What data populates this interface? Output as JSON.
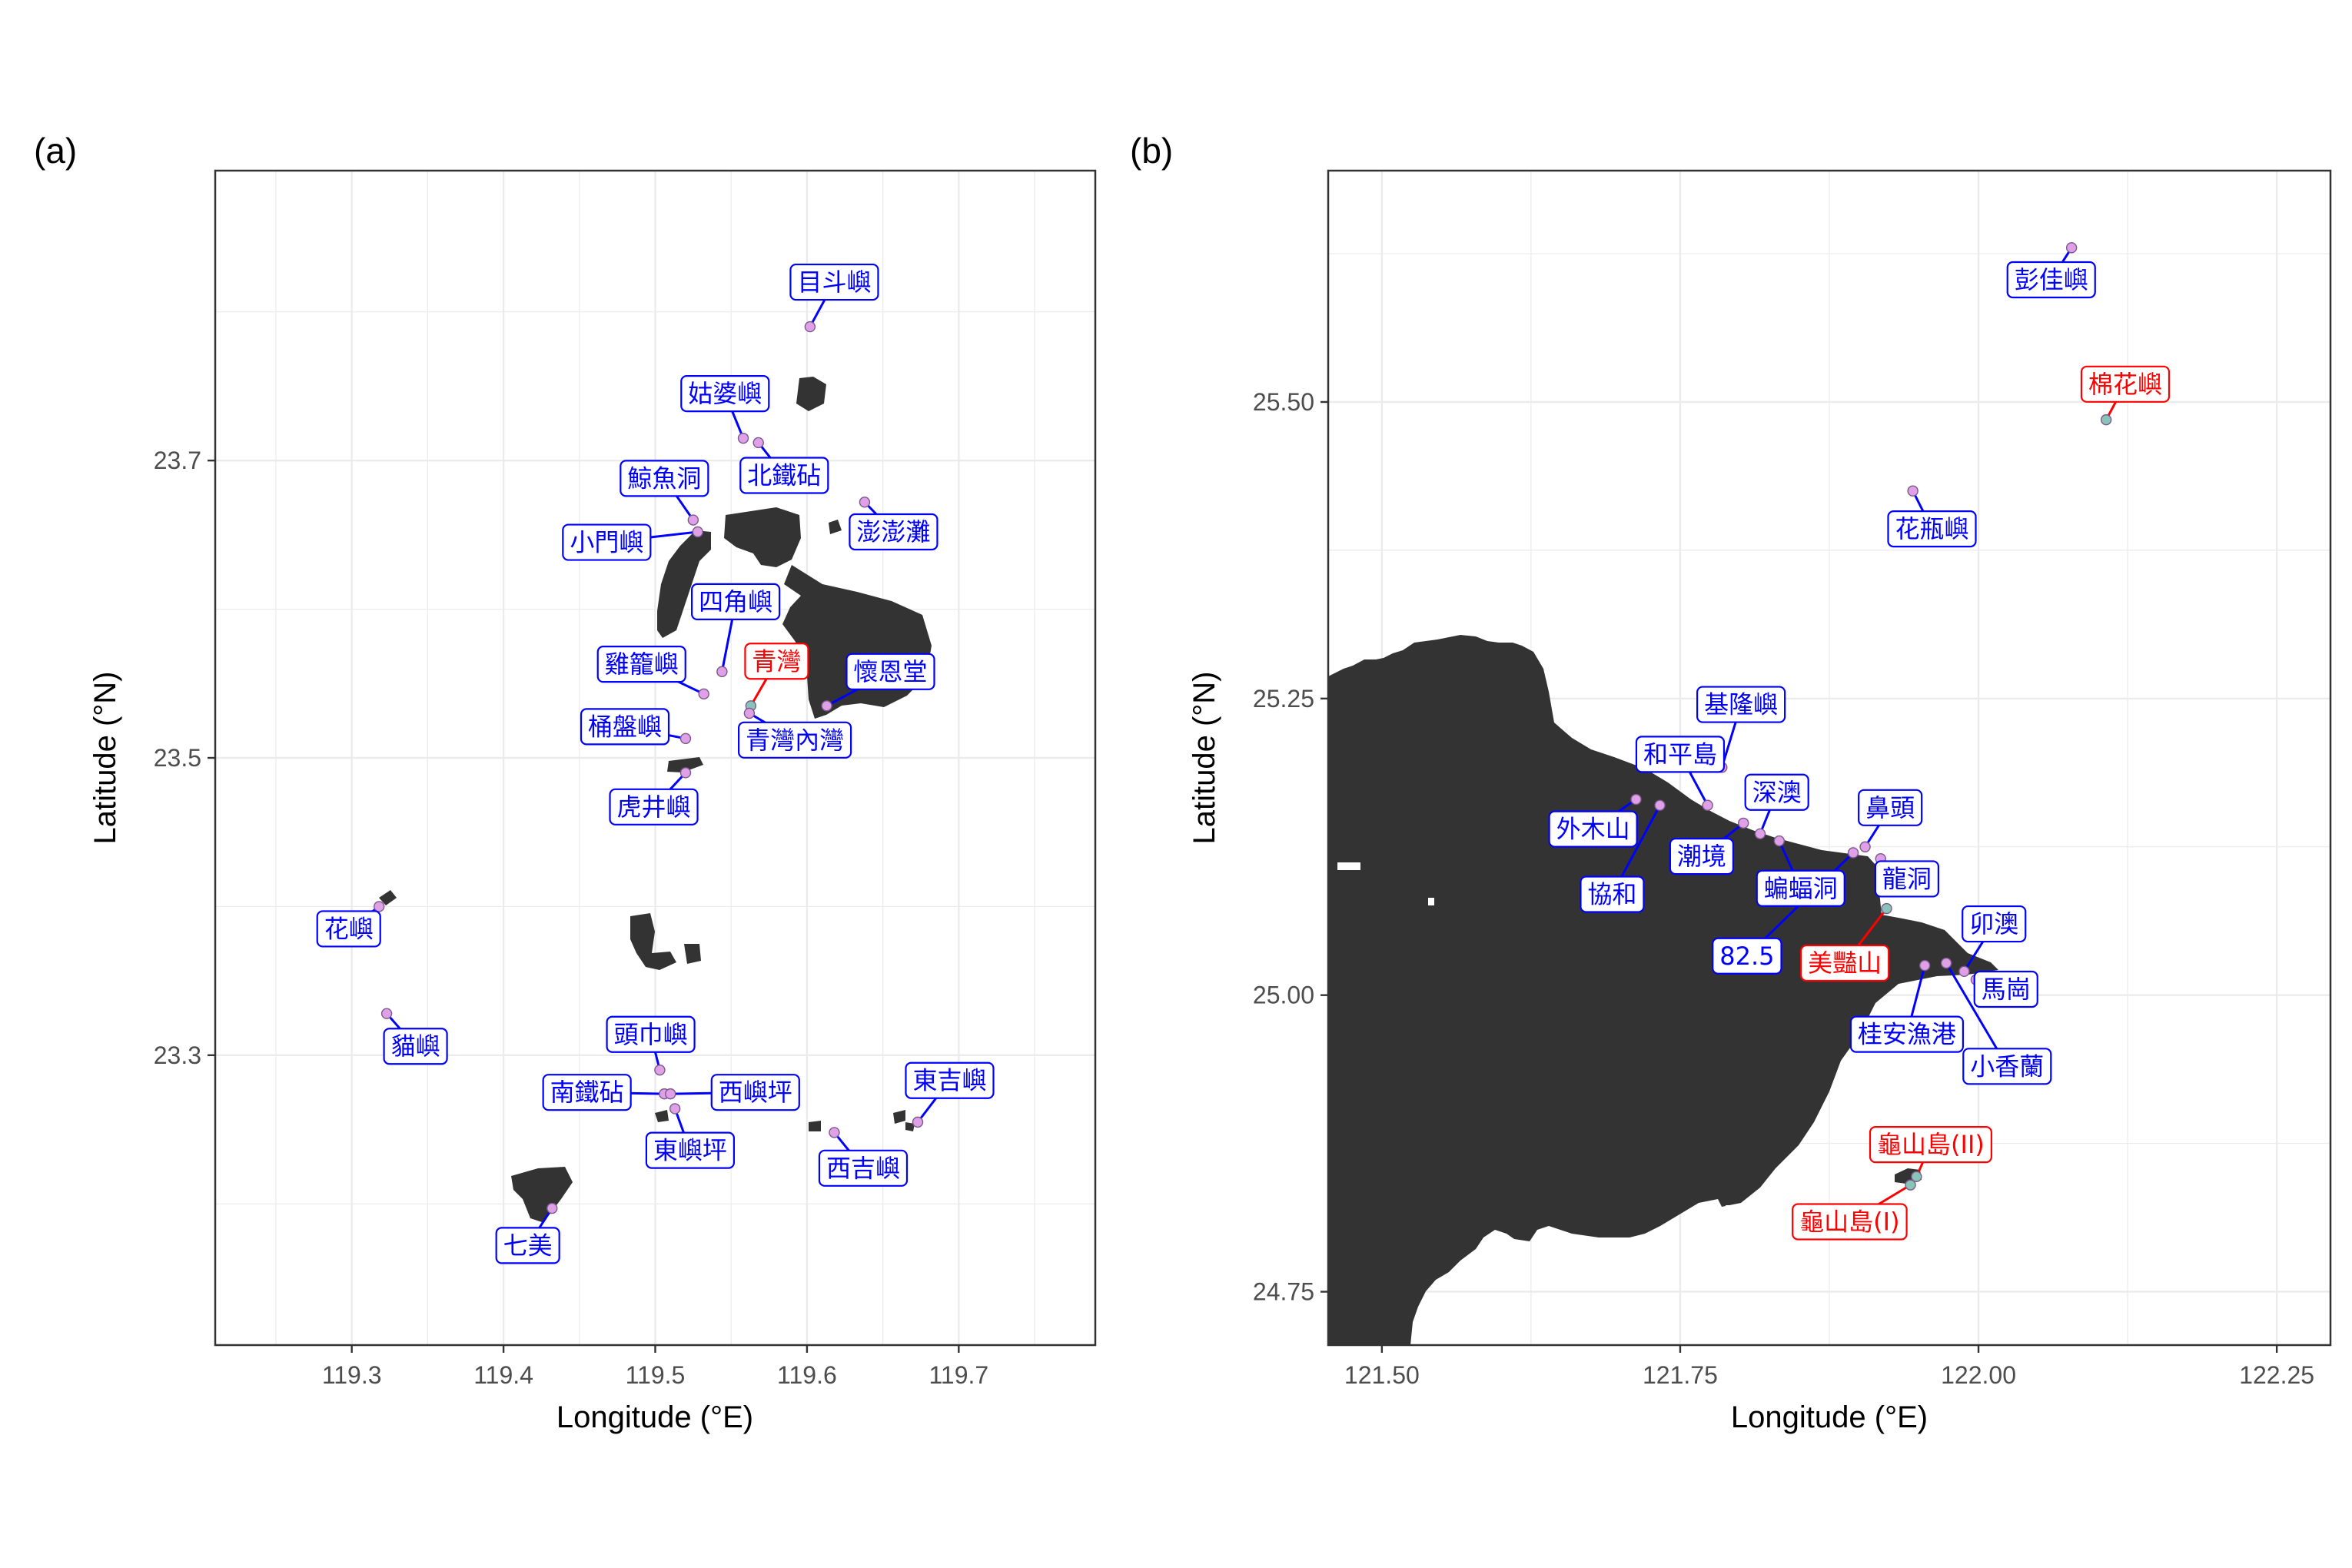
{
  "colors": {
    "land": "#333333",
    "grid": "#ebebeb",
    "frame": "#333333",
    "blue": "#0000ff",
    "red": "#ff0000",
    "point_blue_fill": "#e0a0e8",
    "point_red_fill": "#88c4b8"
  },
  "panels": [
    {
      "tag": "(a)",
      "xlabel": "Longitude (°E)",
      "ylabel": "Latitude (°N)",
      "xlim": [
        119.21,
        119.79
      ],
      "ylim": [
        23.105,
        23.895
      ],
      "xticks": [
        {
          "v": 119.3,
          "t": "119.3"
        },
        {
          "v": 119.4,
          "t": "119.4"
        },
        {
          "v": 119.5,
          "t": "119.5"
        },
        {
          "v": 119.6,
          "t": "119.6"
        },
        {
          "v": 119.7,
          "t": "119.7"
        }
      ],
      "yticks": [
        {
          "v": 23.3,
          "t": "23.3"
        },
        {
          "v": 23.5,
          "t": "23.5"
        },
        {
          "v": 23.7,
          "t": "23.7"
        }
      ],
      "sites": [
        {
          "name": "目斗嶼",
          "lon": 119.602,
          "lat": 23.79,
          "color": "blue",
          "lx": 119.618,
          "ly": 23.82
        },
        {
          "name": "姑婆嶼",
          "lon": 119.558,
          "lat": 23.715,
          "color": "blue",
          "lx": 119.546,
          "ly": 23.745
        },
        {
          "name": "北鐵砧",
          "lon": 119.568,
          "lat": 23.712,
          "color": "blue",
          "lx": 119.585,
          "ly": 23.69
        },
        {
          "name": "鯨魚洞",
          "lon": 119.525,
          "lat": 23.66,
          "color": "blue",
          "lx": 119.506,
          "ly": 23.688
        },
        {
          "name": "小門嶼",
          "lon": 119.528,
          "lat": 23.652,
          "color": "blue",
          "lx": 119.468,
          "ly": 23.645
        },
        {
          "name": "澎澎灘",
          "lon": 119.638,
          "lat": 23.672,
          "color": "blue",
          "lx": 119.657,
          "ly": 23.652
        },
        {
          "name": "四角嶼",
          "lon": 119.544,
          "lat": 23.558,
          "color": "blue",
          "lx": 119.553,
          "ly": 23.605
        },
        {
          "name": "雞籠嶼",
          "lon": 119.532,
          "lat": 23.543,
          "color": "blue",
          "lx": 119.491,
          "ly": 23.563
        },
        {
          "name": "青灣",
          "lon": 119.563,
          "lat": 23.535,
          "color": "red",
          "lx": 119.58,
          "ly": 23.565
        },
        {
          "name": "懷恩堂",
          "lon": 119.613,
          "lat": 23.535,
          "color": "blue",
          "lx": 119.655,
          "ly": 23.558
        },
        {
          "name": "青灣內灣",
          "lon": 119.562,
          "lat": 23.53,
          "color": "blue",
          "lx": 119.592,
          "ly": 23.512
        },
        {
          "name": "桶盤嶼",
          "lon": 119.52,
          "lat": 23.513,
          "color": "blue",
          "lx": 119.48,
          "ly": 23.521
        },
        {
          "name": "虎井嶼",
          "lon": 119.52,
          "lat": 23.49,
          "color": "blue",
          "lx": 119.499,
          "ly": 23.467
        },
        {
          "name": "花嶼",
          "lon": 119.318,
          "lat": 23.4,
          "color": "blue",
          "lx": 119.298,
          "ly": 23.385
        },
        {
          "name": "貓嶼",
          "lon": 119.323,
          "lat": 23.328,
          "color": "blue",
          "lx": 119.342,
          "ly": 23.306
        },
        {
          "name": "頭巾嶼",
          "lon": 119.503,
          "lat": 23.29,
          "color": "blue",
          "lx": 119.497,
          "ly": 23.314
        },
        {
          "name": "南鐵砧",
          "lon": 119.506,
          "lat": 23.274,
          "color": "blue",
          "lx": 119.455,
          "ly": 23.275
        },
        {
          "name": "西嶼坪",
          "lon": 119.51,
          "lat": 23.274,
          "color": "blue",
          "lx": 119.566,
          "ly": 23.275
        },
        {
          "name": "東嶼坪",
          "lon": 119.513,
          "lat": 23.264,
          "color": "blue",
          "lx": 119.523,
          "ly": 23.236
        },
        {
          "name": "東吉嶼",
          "lon": 119.673,
          "lat": 23.255,
          "color": "blue",
          "lx": 119.694,
          "ly": 23.283
        },
        {
          "name": "西吉嶼",
          "lon": 119.618,
          "lat": 23.248,
          "color": "blue",
          "lx": 119.637,
          "ly": 23.224
        },
        {
          "name": "七美",
          "lon": 119.432,
          "lat": 23.197,
          "color": "blue",
          "lx": 119.416,
          "ly": 23.172
        }
      ]
    },
    {
      "tag": "(b)",
      "xlabel": "Longitude (°E)",
      "ylabel": "Latitude (°N)",
      "xlim": [
        121.455,
        122.295
      ],
      "ylim": [
        24.705,
        25.695
      ],
      "xticks": [
        {
          "v": 121.5,
          "t": "121.50"
        },
        {
          "v": 121.75,
          "t": "121.75"
        },
        {
          "v": 122.0,
          "t": "122.00"
        },
        {
          "v": 122.25,
          "t": "122.25"
        }
      ],
      "yticks": [
        {
          "v": 24.75,
          "t": "24.75"
        },
        {
          "v": 25.0,
          "t": "25.00"
        },
        {
          "v": 25.25,
          "t": "25.25"
        },
        {
          "v": 25.5,
          "t": "25.50"
        }
      ],
      "sites": [
        {
          "name": "彭佳嶼",
          "lon": 122.078,
          "lat": 25.63,
          "color": "blue",
          "lx": 122.061,
          "ly": 25.603
        },
        {
          "name": "棉花嶼",
          "lon": 122.107,
          "lat": 25.485,
          "color": "red",
          "lx": 122.123,
          "ly": 25.515
        },
        {
          "name": "花瓶嶼",
          "lon": 121.945,
          "lat": 25.425,
          "color": "blue",
          "lx": 121.961,
          "ly": 25.393
        },
        {
          "name": "基隆嶼",
          "lon": 121.785,
          "lat": 25.192,
          "color": "blue",
          "lx": 121.801,
          "ly": 25.245
        },
        {
          "name": "和平島",
          "lon": 121.773,
          "lat": 25.16,
          "color": "blue",
          "lx": 121.75,
          "ly": 25.203
        },
        {
          "name": "外木山",
          "lon": 121.713,
          "lat": 25.165,
          "color": "blue",
          "lx": 121.677,
          "ly": 25.14
        },
        {
          "name": "協和",
          "lon": 121.733,
          "lat": 25.16,
          "color": "blue",
          "lx": 121.693,
          "ly": 25.085
        },
        {
          "name": "潮境",
          "lon": 121.803,
          "lat": 25.145,
          "color": "blue",
          "lx": 121.768,
          "ly": 25.117
        },
        {
          "name": "深澳",
          "lon": 121.817,
          "lat": 25.136,
          "color": "blue",
          "lx": 121.831,
          "ly": 25.171
        },
        {
          "name": "蝙蝠洞",
          "lon": 121.833,
          "lat": 25.13,
          "color": "blue",
          "lx": 121.851,
          "ly": 25.09
        },
        {
          "name": "鼻頭",
          "lon": 121.905,
          "lat": 25.125,
          "color": "blue",
          "lx": 121.926,
          "ly": 25.158
        },
        {
          "name": "龍洞",
          "lon": 121.918,
          "lat": 25.115,
          "color": "blue",
          "lx": 121.94,
          "ly": 25.098
        },
        {
          "name": "82.5",
          "lon": 121.895,
          "lat": 25.12,
          "color": "blue",
          "lx": 121.806,
          "ly": 25.033
        },
        {
          "name": "美豔山",
          "lon": 121.923,
          "lat": 25.073,
          "color": "red",
          "lx": 121.888,
          "ly": 25.027
        },
        {
          "name": "卯澳",
          "lon": 121.988,
          "lat": 25.02,
          "color": "blue",
          "lx": 122.013,
          "ly": 25.06
        },
        {
          "name": "馬崗",
          "lon": 121.998,
          "lat": 25.013,
          "color": "blue",
          "lx": 122.023,
          "ly": 25.005
        },
        {
          "name": "桂安漁港",
          "lon": 121.955,
          "lat": 25.025,
          "color": "blue",
          "lx": 121.94,
          "ly": 24.967
        },
        {
          "name": "小香蘭",
          "lon": 121.973,
          "lat": 25.027,
          "color": "blue",
          "lx": 122.024,
          "ly": 24.94
        },
        {
          "name": "龜山島(II)",
          "lon": 121.948,
          "lat": 24.847,
          "color": "red",
          "lx": 121.96,
          "ly": 24.874
        },
        {
          "name": "龜山島(I)",
          "lon": 121.943,
          "lat": 24.84,
          "color": "red",
          "lx": 121.892,
          "ly": 24.809
        }
      ]
    }
  ]
}
